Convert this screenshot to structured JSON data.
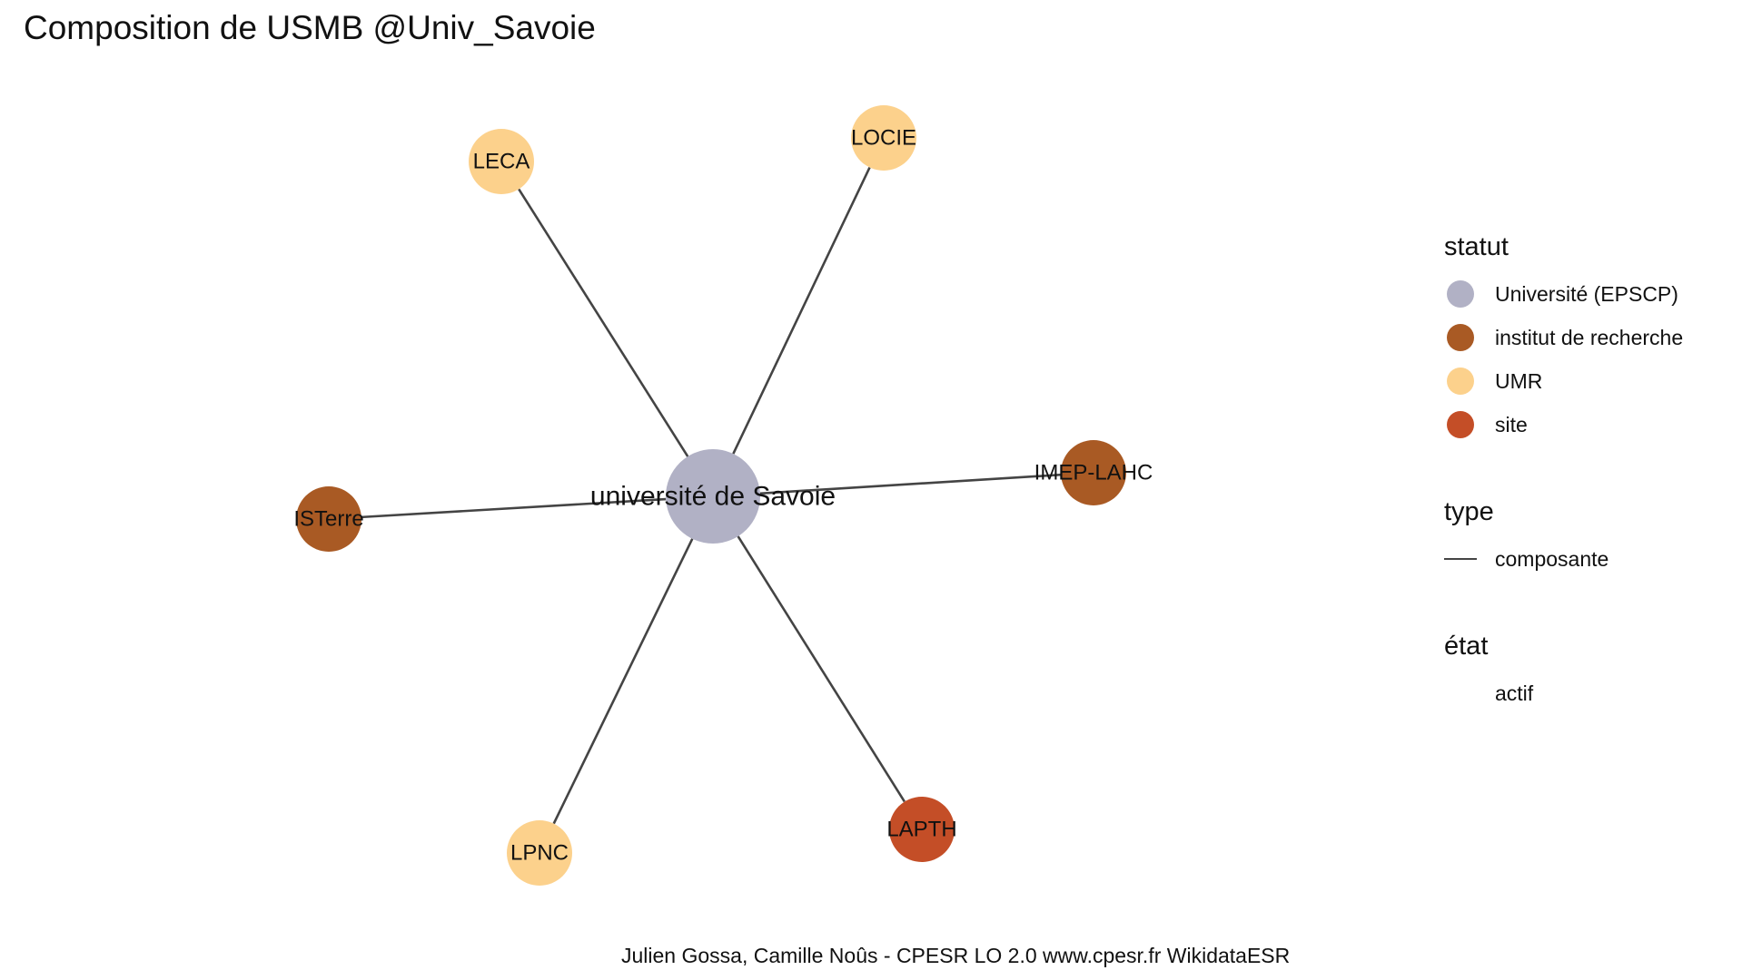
{
  "title": "Composition de USMB @Univ_Savoie",
  "caption": "Julien Gossa, Camille Noûs - CPESR LO 2.0 www.cpesr.fr WikidataESR",
  "legend": {
    "statut": {
      "title": "statut",
      "items": [
        {
          "label": "Université (EPSCP)",
          "color": "#B1B1C5"
        },
        {
          "label": "institut de recherche",
          "color": "#A95A24"
        },
        {
          "label": "UMR",
          "color": "#FCD18C"
        },
        {
          "label": "site",
          "color": "#C44E27"
        }
      ]
    },
    "type": {
      "title": "type",
      "items": [
        {
          "label": "composante",
          "color": "#444444"
        }
      ]
    },
    "etat": {
      "title": "état",
      "items": [
        {
          "label": "actif"
        }
      ]
    }
  },
  "graph": {
    "nodes": [
      {
        "id": "usmb",
        "label": "université de Savoie",
        "statut": "Université (EPSCP)",
        "color": "#B1B1C5"
      },
      {
        "id": "leca",
        "label": "LECA",
        "statut": "UMR",
        "color": "#FCD18C"
      },
      {
        "id": "locie",
        "label": "LOCIE",
        "statut": "UMR",
        "color": "#FCD18C"
      },
      {
        "id": "imep",
        "label": "IMEP-LAHC",
        "statut": "institut de recherche",
        "color": "#A95A24"
      },
      {
        "id": "isterre",
        "label": "ISTerre",
        "statut": "institut de recherche",
        "color": "#A95A24"
      },
      {
        "id": "lapth",
        "label": "LAPTH",
        "statut": "site",
        "color": "#C44E27"
      },
      {
        "id": "lpnc",
        "label": "LPNC",
        "statut": "UMR",
        "color": "#FCD18C"
      }
    ],
    "edges": [
      {
        "source": "usmb",
        "target": "leca",
        "type": "composante"
      },
      {
        "source": "usmb",
        "target": "locie",
        "type": "composante"
      },
      {
        "source": "usmb",
        "target": "imep",
        "type": "composante"
      },
      {
        "source": "usmb",
        "target": "isterre",
        "type": "composante"
      },
      {
        "source": "usmb",
        "target": "lapth",
        "type": "composante"
      },
      {
        "source": "usmb",
        "target": "lpnc",
        "type": "composante"
      }
    ]
  }
}
